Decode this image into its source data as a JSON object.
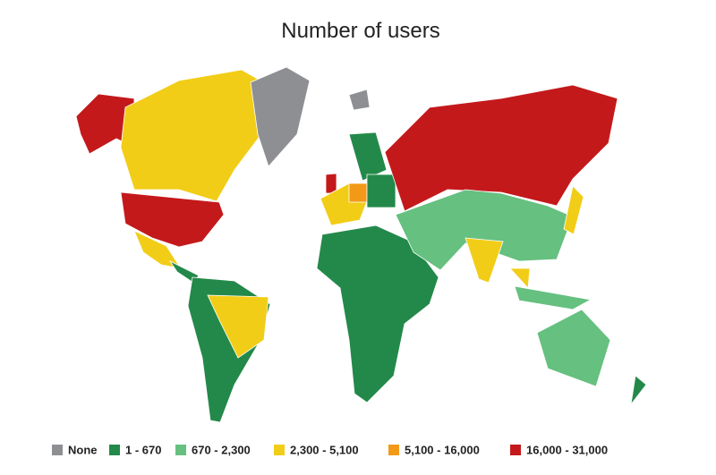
{
  "title": "Number of users",
  "legend": [
    {
      "label": "None",
      "color": "#8e8f93"
    },
    {
      "label": "1 - 670",
      "color": "#23894a"
    },
    {
      "label": "670 - 2,300",
      "color": "#66c080"
    },
    {
      "label": "2,300 - 5,100",
      "color": "#f2cd17"
    },
    {
      "label": "5,100 - 16,000",
      "color": "#f29a17"
    },
    {
      "label": "16,000 - 31,000",
      "color": "#c4191b"
    }
  ]
}
